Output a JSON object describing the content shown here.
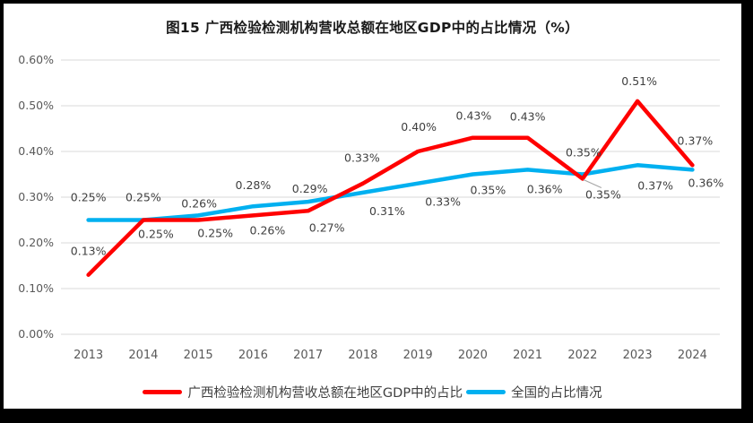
{
  "chart_data": {
    "type": "line",
    "title": "图15 广西检验检测机构营收总额在地区GDP中的占比情况（%）",
    "categories": [
      "2013",
      "2014",
      "2015",
      "2016",
      "2017",
      "2018",
      "2019",
      "2020",
      "2021",
      "2022",
      "2023",
      "2024"
    ],
    "series": [
      {
        "name": "广西检验检测机构营收总额在地区GDP中的占比",
        "color": "#FF0000",
        "unit": "%",
        "values": [
          0.13,
          0.25,
          0.25,
          0.26,
          0.27,
          0.33,
          0.4,
          0.43,
          0.43,
          0.35,
          0.51,
          0.37
        ]
      },
      {
        "name": "全国的占比情况",
        "color": "#00B0F0",
        "unit": "%",
        "values": [
          0.25,
          0.25,
          0.26,
          0.28,
          0.29,
          0.31,
          0.33,
          0.35,
          0.36,
          0.35,
          0.37,
          0.36
        ]
      }
    ],
    "y_ticks": [
      "0.60%",
      "0.50%",
      "0.40%",
      "0.30%",
      "0.20%",
      "0.10%",
      "0.00%"
    ],
    "ylim": [
      0,
      0.6
    ],
    "grid": true,
    "data_labels": true,
    "legend_position": "bottom",
    "colors": {
      "gridline": "#D9D9D9",
      "axis_text": "#595959",
      "data_label_text": "#3F3F3F",
      "leader_line": "#A6A6A6"
    }
  }
}
